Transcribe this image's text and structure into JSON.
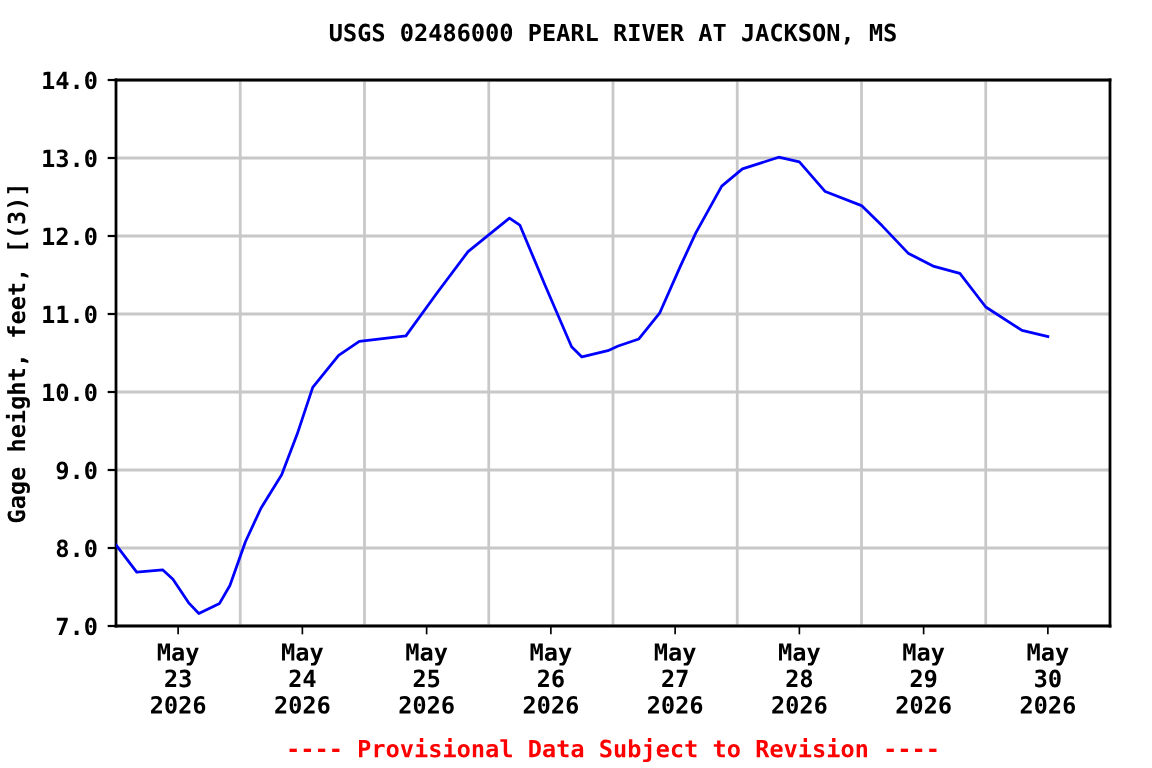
{
  "chart_data": {
    "type": "line",
    "title": "USGS 02486000 PEARL RIVER AT JACKSON, MS",
    "ylabel": "Gage height, feet, [(3)]",
    "annotations": [
      "---- Provisional Data Subject to Revision ----"
    ],
    "x": [
      "2026-05-23T00:00",
      "2026-05-23T04:00",
      "2026-05-23T09:00",
      "2026-05-23T11:00",
      "2026-05-23T14:00",
      "2026-05-23T16:00",
      "2026-05-23T20:00",
      "2026-05-23T22:00",
      "2026-05-24T01:00",
      "2026-05-24T04:00",
      "2026-05-24T08:00",
      "2026-05-24T11:00",
      "2026-05-24T14:00",
      "2026-05-24T19:00",
      "2026-05-24T23:00",
      "2026-05-25T08:00",
      "2026-05-25T14:00",
      "2026-05-25T20:00",
      "2026-05-26T04:00",
      "2026-05-26T06:00",
      "2026-05-26T11:00",
      "2026-05-26T16:00",
      "2026-05-26T18:00",
      "2026-05-26T23:00",
      "2026-05-27T01:00",
      "2026-05-27T05:00",
      "2026-05-27T09:00",
      "2026-05-27T13:00",
      "2026-05-27T16:00",
      "2026-05-27T21:00",
      "2026-05-28T01:00",
      "2026-05-28T08:00",
      "2026-05-28T12:00",
      "2026-05-28T17:00",
      "2026-05-29T00:00",
      "2026-05-29T04:00",
      "2026-05-29T09:00",
      "2026-05-29T14:00",
      "2026-05-29T19:00",
      "2026-05-30T00:00",
      "2026-05-30T07:00",
      "2026-05-30T12:00"
    ],
    "series": [
      {
        "color": "#0000ff",
        "values": [
          8.04,
          7.69,
          7.72,
          7.6,
          7.3,
          7.16,
          7.29,
          7.52,
          8.08,
          8.51,
          8.94,
          9.46,
          10.06,
          10.47,
          10.65,
          10.72,
          11.27,
          11.8,
          12.23,
          12.14,
          11.35,
          10.58,
          10.45,
          10.53,
          10.59,
          10.68,
          11.01,
          11.61,
          12.04,
          12.64,
          12.86,
          13.01,
          12.95,
          12.57,
          12.39,
          12.13,
          11.78,
          11.61,
          11.52,
          11.09,
          10.79,
          10.71
        ]
      }
    ],
    "xlim": [
      "2026-05-23T00:00",
      "2026-05-31T00:00"
    ],
    "xticks": [
      {
        "value": "2026-05-23T12:00",
        "label": "May\n23\n2026"
      },
      {
        "value": "2026-05-24T00:00",
        "label": null
      },
      {
        "value": "2026-05-24T12:00",
        "label": "May\n24\n2026"
      },
      {
        "value": "2026-05-25T00:00",
        "label": null
      },
      {
        "value": "2026-05-25T12:00",
        "label": "May\n25\n2026"
      },
      {
        "value": "2026-05-26T00:00",
        "label": null
      },
      {
        "value": "2026-05-26T12:00",
        "label": "May\n26\n2026"
      },
      {
        "value": "2026-05-27T00:00",
        "label": null
      },
      {
        "value": "2026-05-27T12:00",
        "label": "May\n27\n2026"
      },
      {
        "value": "2026-05-28T00:00",
        "label": null
      },
      {
        "value": "2026-05-28T12:00",
        "label": "May\n28\n2026"
      },
      {
        "value": "2026-05-29T00:00",
        "label": null
      },
      {
        "value": "2026-05-29T12:00",
        "label": "May\n29\n2026"
      },
      {
        "value": "2026-05-30T00:00",
        "label": null
      },
      {
        "value": "2026-05-30T12:00",
        "label": "May\n30\n2026"
      }
    ],
    "ylim": [
      7,
      14
    ],
    "yticks": [
      {
        "value": 7,
        "label": "7.0"
      },
      {
        "value": 8,
        "label": "8.0"
      },
      {
        "value": 9,
        "label": "9.0"
      },
      {
        "value": 10,
        "label": "10.0"
      },
      {
        "value": 11,
        "label": "11.0"
      },
      {
        "value": 12,
        "label": "12.0"
      },
      {
        "value": 13,
        "label": "13.0"
      },
      {
        "value": 14,
        "label": "14.0"
      }
    ],
    "grid": true,
    "marker": "none",
    "line_style": "solid",
    "legend": false
  }
}
